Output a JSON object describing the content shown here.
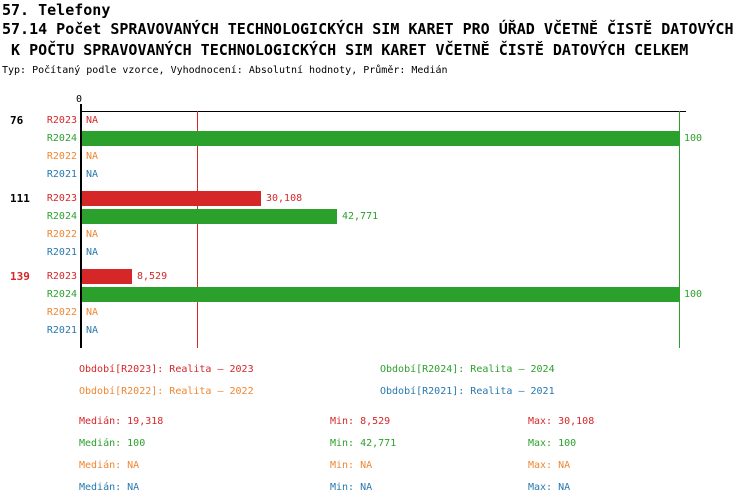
{
  "header": {
    "line1": "57. Telefony",
    "line2": "57.14 Počet SPRAVOVANÝCH TECHNOLOGICKÝCH SIM KARET PRO ÚŘAD VČETNĚ ČISTĚ DATOVÝCH",
    "line3": " K POČTU SPRAVOVANÝCH TECHNOLOGICKÝCH SIM KARET VČETNĚ ČISTĚ DATOVÝCH CELKEM",
    "meta": "Typ: Počítaný podle vzorce, Vyhodnocení: Absolutní hodnoty, Průměr: Medián"
  },
  "colors": {
    "R2023": "#d62728",
    "R2024": "#2ca02c",
    "R2022": "#ef8632",
    "R2021": "#2878af",
    "axis": "#000000",
    "group_label_default": "#000000",
    "group_label_highlight": "#d62728"
  },
  "chart_data": {
    "type": "bar",
    "orientation": "horizontal",
    "title": "57.14 Počet SPRAVOVANÝCH TECHNOLOGICKÝCH SIM KARET PRO ÚŘAD VČETNĚ ČISTĚ DATOVÝCH K POČTU SPRAVOVANÝCH TECHNOLOGICKÝCH SIM KARET VČETNĚ ČISTĚ DATOVÝCH CELKEM",
    "x_axis": {
      "zero_label": "0",
      "min": 0,
      "max": 100,
      "gridlines": false
    },
    "series_order": [
      "R2023",
      "R2024",
      "R2022",
      "R2021"
    ],
    "groups": [
      {
        "label": "76",
        "highlight": false,
        "bars": [
          {
            "series": "R2023",
            "value": null,
            "display": "NA"
          },
          {
            "series": "R2024",
            "value": 100,
            "display": "100"
          },
          {
            "series": "R2022",
            "value": null,
            "display": "NA"
          },
          {
            "series": "R2021",
            "value": null,
            "display": "NA"
          }
        ]
      },
      {
        "label": "111",
        "highlight": false,
        "bars": [
          {
            "series": "R2023",
            "value": 30.108,
            "display": "30,108"
          },
          {
            "series": "R2024",
            "value": 42.771,
            "display": "42,771"
          },
          {
            "series": "R2022",
            "value": null,
            "display": "NA"
          },
          {
            "series": "R2021",
            "value": null,
            "display": "NA"
          }
        ]
      },
      {
        "label": "139",
        "highlight": true,
        "bars": [
          {
            "series": "R2023",
            "value": 8.529,
            "display": "8,529"
          },
          {
            "series": "R2024",
            "value": 100,
            "display": "100"
          },
          {
            "series": "R2022",
            "value": null,
            "display": "NA"
          },
          {
            "series": "R2021",
            "value": null,
            "display": "NA"
          }
        ]
      }
    ],
    "reference_lines": [
      {
        "name": "median-R2023",
        "series": "R2023",
        "value": 19.318
      },
      {
        "name": "median-R2024",
        "series": "R2024",
        "value": 100
      }
    ]
  },
  "legend": [
    {
      "series": "R2023",
      "label": "Období[R2023]: Realita – 2023"
    },
    {
      "series": "R2024",
      "label": "Období[R2024]: Realita – 2024"
    },
    {
      "series": "R2022",
      "label": "Období[R2022]: Realita – 2022"
    },
    {
      "series": "R2021",
      "label": "Období[R2021]: Realita – 2021"
    }
  ],
  "stats": [
    {
      "series": "R2023",
      "median": "Medián: 19,318",
      "min": "Min: 8,529",
      "max": "Max: 30,108"
    },
    {
      "series": "R2024",
      "median": "Medián: 100",
      "min": "Min: 42,771",
      "max": "Max: 100"
    },
    {
      "series": "R2022",
      "median": "Medián: NA",
      "min": "Min: NA",
      "max": "Max: NA"
    },
    {
      "series": "R2021",
      "median": "Medián: NA",
      "min": "Min: NA",
      "max": "Max: NA"
    }
  ]
}
